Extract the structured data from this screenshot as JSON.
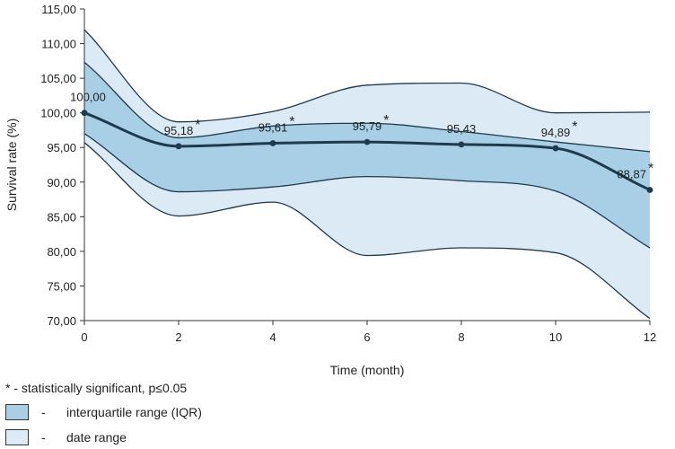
{
  "chart_data": {
    "type": "line",
    "xlabel": "Time (month)",
    "ylabel": "Survival rate (%)",
    "xlim": [
      0,
      12
    ],
    "ylim": [
      70,
      115
    ],
    "xticks": [
      0,
      2,
      4,
      6,
      8,
      10,
      12
    ],
    "ytick_labels": [
      "70,00",
      "75,00",
      "80,00",
      "85,00",
      "90,00",
      "95,00",
      "100,00",
      "105,00",
      "110,00",
      "115,00"
    ],
    "x": [
      0,
      2,
      4,
      6,
      8,
      10,
      12
    ],
    "median": {
      "values": [
        100.0,
        95.18,
        95.61,
        95.79,
        95.43,
        94.89,
        88.87
      ],
      "labels": [
        "100,00",
        "95,18",
        "95,61",
        "95,79",
        "95,43",
        "94,89",
        "88,87"
      ],
      "significant": [
        false,
        true,
        true,
        true,
        false,
        true,
        true
      ]
    },
    "iqr": {
      "name": "interquartile range (IQR)",
      "upper": [
        107.3,
        96.4,
        98.1,
        98.5,
        97.3,
        95.8,
        94.4
      ],
      "lower": [
        97.0,
        88.6,
        89.3,
        90.8,
        90.2,
        88.7,
        80.5
      ],
      "color": "#a9cfe6"
    },
    "range": {
      "name": "date range",
      "upper": [
        112.0,
        98.7,
        100.2,
        104.0,
        104.3,
        100.0,
        100.1
      ],
      "lower": [
        95.7,
        85.1,
        87.1,
        79.4,
        80.5,
        79.8,
        70.3
      ],
      "color": "#dbeaf4"
    },
    "line_color": "#1f3a4d",
    "asterisk": "*"
  },
  "legend": {
    "note": "* - statistically significant, p≤0.05",
    "dash": "-",
    "iqr_label": "interquartile range (IQR)",
    "range_label": "date range"
  }
}
